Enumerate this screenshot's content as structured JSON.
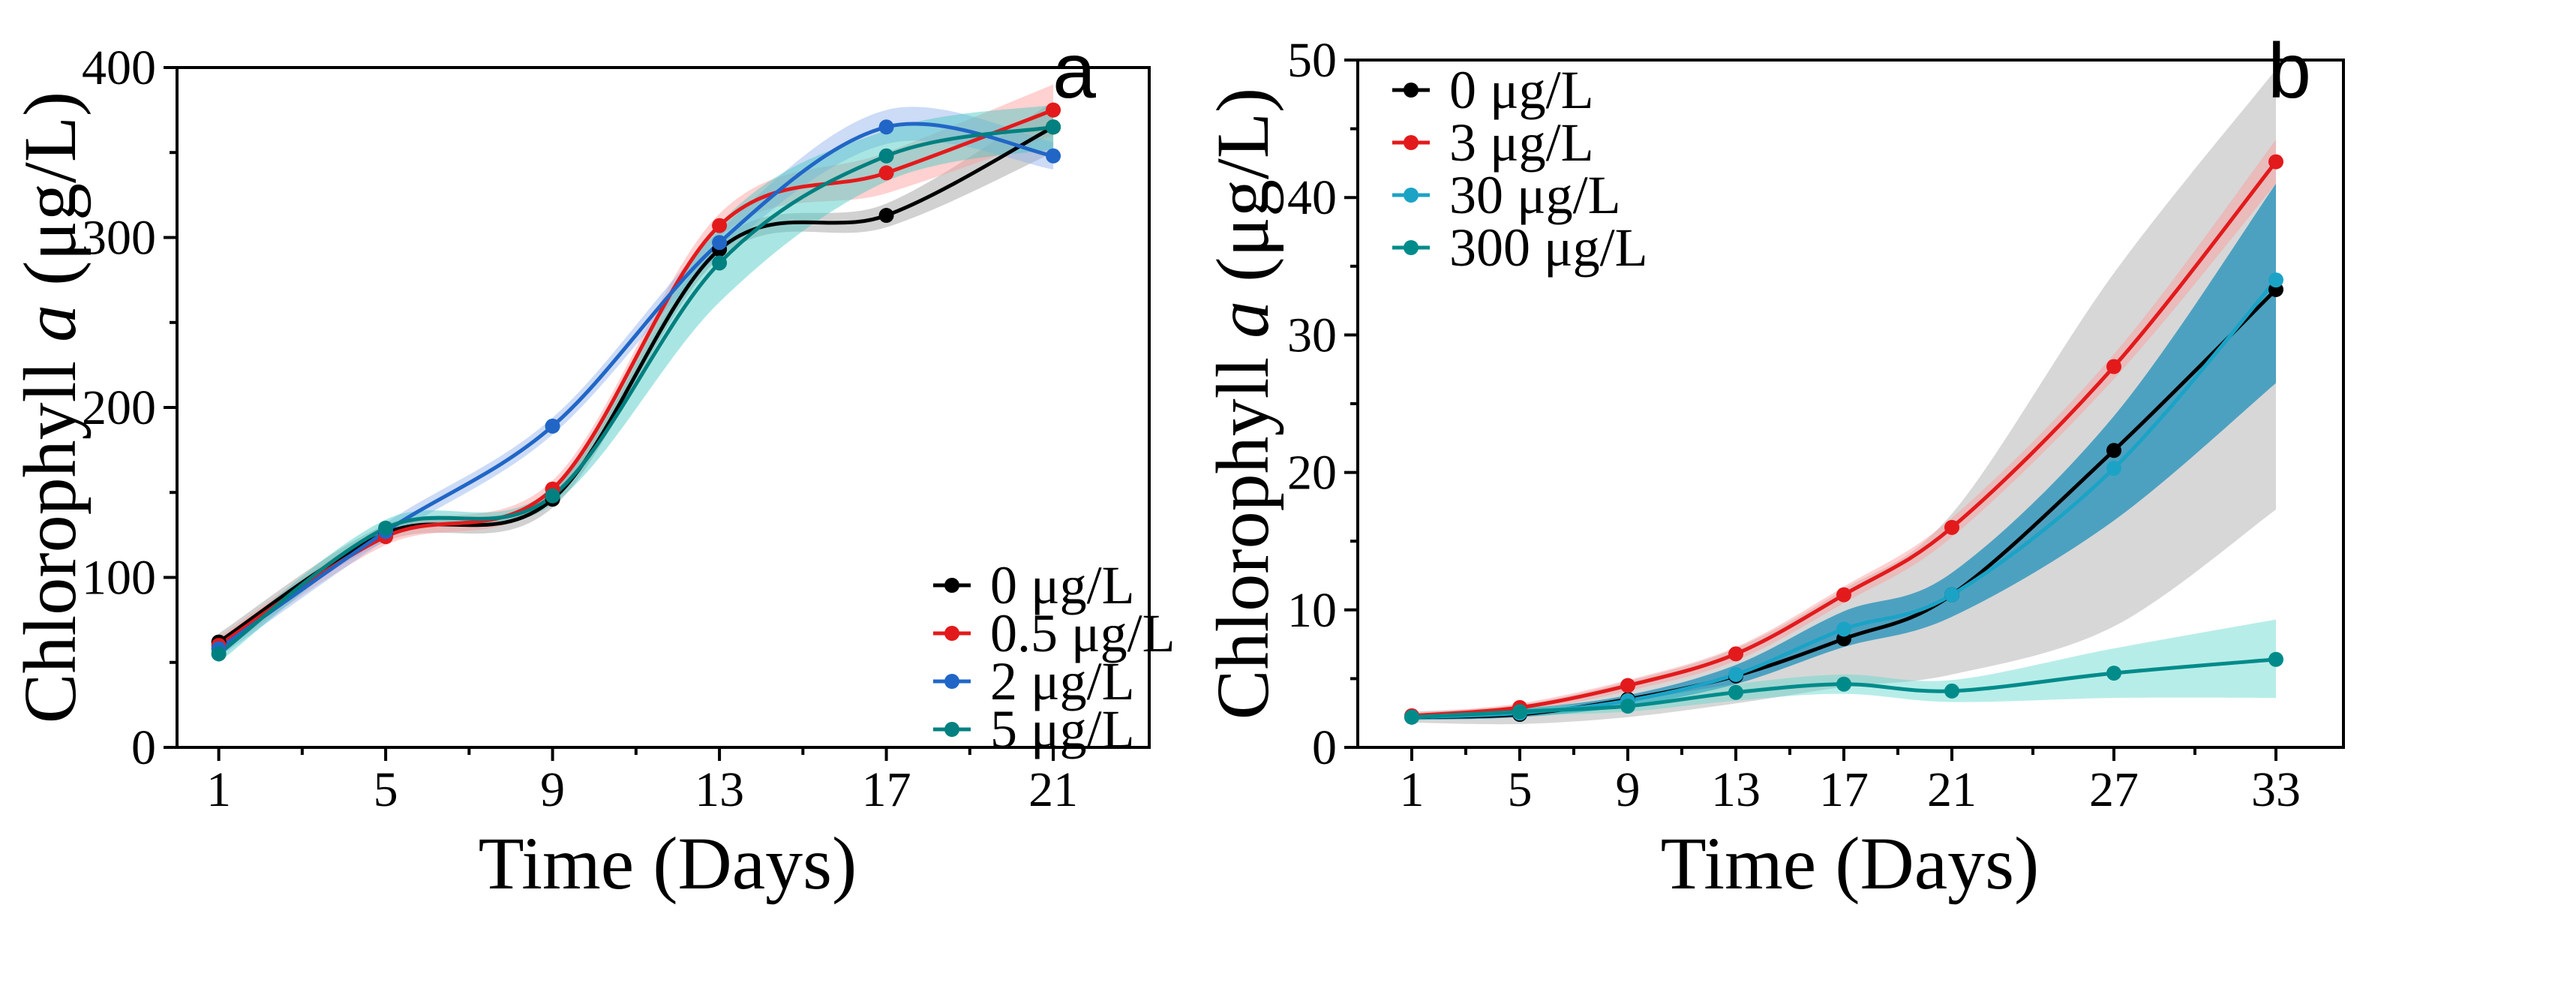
{
  "chart_data": [
    {
      "type": "line",
      "panel_label": "a",
      "xlabel": "Time (Days)",
      "ylabel_prefix": "Chlorophyll ",
      "ylabel_italic": "a",
      "ylabel_suffix": " (μg/L)",
      "xlim": [
        0,
        23.3
      ],
      "ylim": [
        0,
        400
      ],
      "x_ticks": [
        1,
        5,
        9,
        13,
        17,
        21
      ],
      "y_ticks": [
        0,
        100,
        200,
        300,
        400
      ],
      "legend_position": "bottom-right",
      "x": [
        1,
        5,
        9,
        13,
        17,
        21
      ],
      "series": [
        {
          "name": "0 μg/L",
          "color": "#000000",
          "band_color": "#999999",
          "values": [
            62,
            126,
            146,
            293,
            313,
            365
          ],
          "lower": [
            57,
            121,
            141,
            288,
            306,
            350
          ],
          "upper": [
            67,
            131,
            151,
            298,
            320,
            380
          ]
        },
        {
          "name": "0.5 μg/L",
          "color": "#e31a1c",
          "band_color": "#ff9a9a",
          "values": [
            60,
            124,
            152,
            307,
            338,
            375
          ],
          "lower": [
            55,
            119,
            147,
            300,
            326,
            360
          ],
          "upper": [
            65,
            129,
            157,
            314,
            350,
            390
          ]
        },
        {
          "name": "2 μg/L",
          "color": "#2166c6",
          "band_color": "#8fb0ea",
          "values": [
            58,
            127,
            189,
            297,
            365,
            348
          ],
          "lower": [
            53,
            122,
            184,
            290,
            355,
            340
          ],
          "upper": [
            63,
            132,
            194,
            304,
            375,
            356
          ]
        },
        {
          "name": "5 μg/L",
          "color": "#008080",
          "band_color": "#40c8c0",
          "values": [
            55,
            129,
            148,
            285,
            348,
            365
          ],
          "lower": [
            50,
            124,
            143,
            262,
            333,
            352
          ],
          "upper": [
            60,
            134,
            153,
            308,
            363,
            378
          ]
        }
      ]
    },
    {
      "type": "line",
      "panel_label": "b",
      "xlabel": "Time (Days)",
      "ylabel_prefix": "Chlorophyll ",
      "ylabel_italic": "a",
      "ylabel_suffix": " (μg/L)",
      "xlim": [
        -1,
        35.5
      ],
      "ylim": [
        0,
        50
      ],
      "x_ticks": [
        1,
        5,
        9,
        13,
        17,
        21,
        27,
        33
      ],
      "y_ticks": [
        0,
        10,
        20,
        30,
        40,
        50
      ],
      "legend_position": "top-left",
      "x": [
        1,
        5,
        9,
        13,
        17,
        21,
        27,
        33
      ],
      "series": [
        {
          "name": "0 μg/L",
          "color": "#000000",
          "band_color": "#a6a6a6",
          "values": [
            2.2,
            2.4,
            3.5,
            5.2,
            7.9,
            11.1,
            21.6,
            33.3
          ],
          "lower": [
            1.8,
            1.7,
            2.2,
            3.2,
            4.4,
            5.3,
            8.8,
            17.3
          ],
          "upper": [
            2.6,
            3.1,
            4.8,
            7.2,
            11.5,
            17.0,
            34.5,
            49.3
          ]
        },
        {
          "name": "3 μg/L",
          "color": "#e31a1c",
          "band_color": "#ff9a9a",
          "values": [
            2.3,
            2.9,
            4.5,
            6.8,
            11.1,
            16.0,
            27.7,
            42.6
          ],
          "lower": [
            2.1,
            2.6,
            4.1,
            6.3,
            10.5,
            15.3,
            26.8,
            41.0
          ],
          "upper": [
            2.5,
            3.2,
            4.9,
            7.3,
            11.7,
            16.7,
            28.6,
            44.2
          ]
        },
        {
          "name": "30 μg/L",
          "color": "#1ba3c6",
          "band_color": "#1f8fb8",
          "values": [
            2.2,
            2.5,
            3.4,
            5.3,
            8.6,
            11.1,
            20.3,
            34.0
          ],
          "lower": [
            2.0,
            2.2,
            3.0,
            4.6,
            7.3,
            9.5,
            16.5,
            26.5
          ],
          "upper": [
            2.4,
            2.8,
            3.8,
            6.0,
            9.9,
            12.7,
            24.1,
            41.0
          ]
        },
        {
          "name": "300 μg/L",
          "color": "#008b8b",
          "band_color": "#5fd6cc",
          "values": [
            2.2,
            2.6,
            3.0,
            4.0,
            4.6,
            4.1,
            5.4,
            6.4
          ],
          "lower": [
            2.0,
            2.3,
            2.6,
            3.4,
            3.9,
            3.3,
            3.6,
            3.6
          ],
          "upper": [
            2.4,
            2.9,
            3.4,
            4.6,
            5.3,
            4.9,
            7.2,
            9.3
          ]
        }
      ]
    }
  ]
}
